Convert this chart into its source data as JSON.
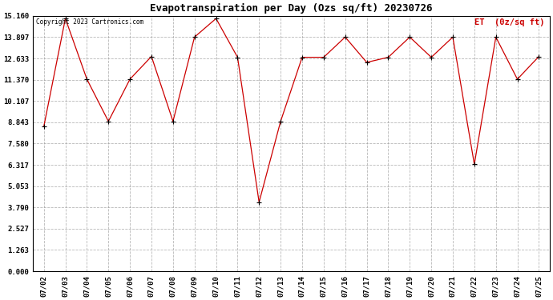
{
  "title": "Evapotranspiration per Day (Ozs sq/ft) 20230726",
  "copyright": "Copyright 2023 Cartronics.com",
  "legend_label": "ET  (0z/sq ft)",
  "dates": [
    "07/02",
    "07/03",
    "07/04",
    "07/05",
    "07/06",
    "07/07",
    "07/08",
    "07/09",
    "07/10",
    "07/11",
    "07/12",
    "07/13",
    "07/14",
    "07/15",
    "07/16",
    "07/17",
    "07/18",
    "07/19",
    "07/20",
    "07/21",
    "07/22",
    "07/23",
    "07/24",
    "07/25"
  ],
  "values": [
    8.6,
    15.0,
    11.4,
    8.9,
    11.4,
    12.75,
    8.9,
    13.9,
    15.0,
    12.7,
    4.1,
    8.9,
    12.7,
    12.7,
    13.9,
    12.4,
    12.7,
    13.9,
    12.7,
    13.9,
    6.35,
    13.9,
    11.4,
    12.75
  ],
  "line_color": "#cc0000",
  "marker_color": "#000000",
  "background_color": "#ffffff",
  "grid_color": "#999999",
  "yticks": [
    0.0,
    1.263,
    2.527,
    3.79,
    5.053,
    6.317,
    7.58,
    8.843,
    10.107,
    11.37,
    12.633,
    13.897,
    15.16
  ],
  "ylim": [
    0.0,
    15.16
  ],
  "title_fontsize": 9,
  "legend_color": "#cc0000",
  "tick_fontsize": 6.5,
  "copyright_fontsize": 5.5,
  "legend_fontsize": 7.5
}
